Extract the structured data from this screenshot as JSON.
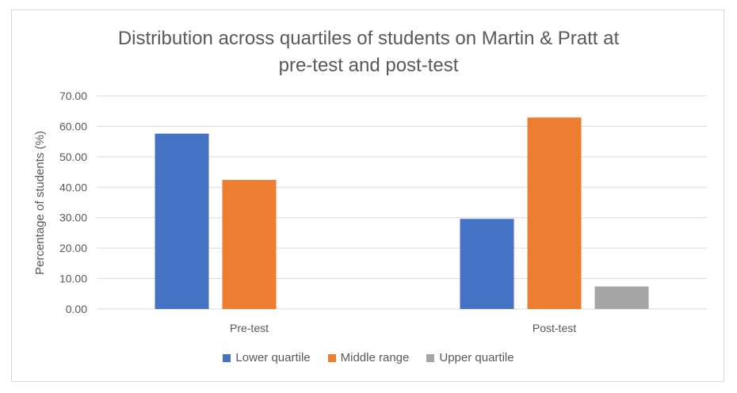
{
  "chart_data": {
    "type": "bar",
    "title_line1": "Distribution across quartiles of students on Martin & Pratt at",
    "title_line2": "pre-test and post-test",
    "xlabel": "",
    "ylabel": "Percentage of students (%)",
    "ylim": [
      0,
      70
    ],
    "yticks": [
      "0.00",
      "10.00",
      "20.00",
      "30.00",
      "40.00",
      "50.00",
      "60.00",
      "70.00"
    ],
    "categories": [
      "Pre-test",
      "Post-test"
    ],
    "series": [
      {
        "name": "Lower quartile",
        "color": "#4472C4",
        "values": [
          57.6,
          29.6
        ]
      },
      {
        "name": "Middle range",
        "color": "#ED7D31",
        "values": [
          42.4,
          62.9
        ]
      },
      {
        "name": "Upper quartile",
        "color": "#A5A5A5",
        "values": [
          0,
          7.4
        ]
      }
    ],
    "grid": true,
    "legend_position": "bottom"
  }
}
